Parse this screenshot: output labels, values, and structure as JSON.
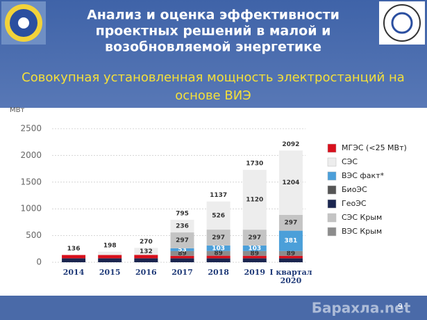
{
  "slide": {
    "title": [
      "Анализ и оценка эффективности",
      "проектных решений в малой и",
      "возобновляемой энергетике"
    ],
    "subtitle": [
      "Совокупная установленная мощность электростанций на",
      "основе ВИЭ"
    ],
    "page_number": "9",
    "watermark": "Барахла.net"
  },
  "chart_data": {
    "type": "bar",
    "stacked": true,
    "y_label": "МВт",
    "categories": [
      "2014",
      "2015",
      "2016",
      "2017",
      "2018",
      "2019",
      "I квартал\n2020"
    ],
    "ylim": [
      0,
      2500
    ],
    "yticks": [
      0,
      500,
      1000,
      1500,
      2000,
      2500
    ],
    "grid": true,
    "totals": [
      136,
      198,
      270,
      795,
      1137,
      1730,
      2092
    ],
    "series": [
      {
        "name": "МГЭС (<25 МВт)",
        "color": "#d8101c",
        "values": [
          62,
          62,
          64,
          46,
          48,
          47,
          47
        ]
      },
      {
        "name": "СЭС",
        "color": "#ededed",
        "values": [
          0,
          62,
          132,
          236,
          526,
          1120,
          1204
        ],
        "value_labels": [
          null,
          null,
          "132",
          "236",
          "526",
          "1120",
          "1204"
        ]
      },
      {
        "name": "ВЭС факт*",
        "color": "#4b9fd9",
        "values": [
          0,
          0,
          0,
          53,
          103,
          103,
          381
        ],
        "value_labels": [
          null,
          null,
          null,
          "53",
          "103",
          "103",
          "381"
        ]
      },
      {
        "name": "БиоЭС",
        "color": "#555555",
        "values": [
          0,
          0,
          0,
          0,
          0,
          0,
          0
        ]
      },
      {
        "name": "ГеоЭС",
        "color": "#1b2650",
        "values": [
          74,
          74,
          74,
          74,
          74,
          74,
          74
        ]
      },
      {
        "name": "СЭС Крым",
        "color": "#c4c4c4",
        "values": [
          0,
          0,
          0,
          297,
          297,
          297,
          297
        ],
        "value_labels": [
          null,
          null,
          null,
          "297",
          "297",
          "297",
          "297"
        ]
      },
      {
        "name": "ВЭС Крым",
        "color": "#8c8c8c",
        "values": [
          0,
          0,
          0,
          89,
          89,
          89,
          89
        ],
        "value_labels": [
          null,
          null,
          null,
          "89",
          "89",
          "89",
          "89"
        ]
      }
    ]
  }
}
